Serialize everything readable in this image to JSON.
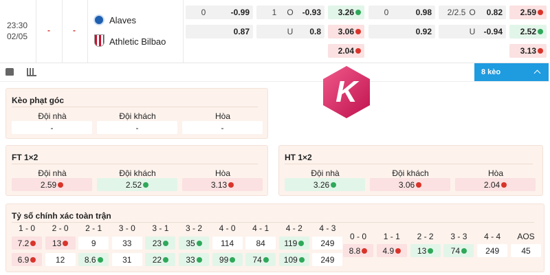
{
  "match": {
    "time": "23:30",
    "date": "02/05",
    "score_home": "-",
    "score_away": "-",
    "home": "Alaves",
    "away": "Athletic Bilbao"
  },
  "odds": {
    "rows": [
      [
        {
          "handicap": "0",
          "odds": "-0.99"
        },
        {
          "handicap": "1",
          "side": "O",
          "odds": "-0.93"
        },
        {
          "odds": "3.26",
          "trend": "up"
        },
        {
          "handicap": "0",
          "odds": "0.98"
        },
        {
          "handicap": "2/2.5",
          "side": "O",
          "odds": "0.82"
        },
        {
          "odds": "2.59",
          "trend": "down"
        }
      ],
      [
        {
          "odds": "0.87"
        },
        {
          "side": "U",
          "odds": "0.8"
        },
        {
          "odds": "3.06",
          "trend": "down"
        },
        {
          "odds": "0.92"
        },
        {
          "side": "U",
          "odds": "-0.94"
        },
        {
          "odds": "2.52",
          "trend": "up"
        }
      ],
      [
        null,
        null,
        {
          "odds": "2.04",
          "trend": "down"
        },
        null,
        null,
        {
          "odds": "3.13",
          "trend": "down"
        }
      ]
    ]
  },
  "toolbar": {
    "button": "8 kèo"
  },
  "logo": "K",
  "corner": {
    "title": "Kèo phạt góc",
    "headers": [
      "Đội nhà",
      "Đội khách",
      "Hòa"
    ],
    "values": [
      {
        "odds": "-"
      },
      {
        "odds": "-"
      },
      {
        "odds": "-"
      }
    ]
  },
  "ft": {
    "title": "FT 1×2",
    "headers": [
      "Đội nhà",
      "Đội khách",
      "Hòa"
    ],
    "values": [
      {
        "odds": "2.59",
        "trend": "down"
      },
      {
        "odds": "2.52",
        "trend": "up"
      },
      {
        "odds": "3.13",
        "trend": "down"
      }
    ]
  },
  "ht": {
    "title": "HT 1×2",
    "headers": [
      "Đội nhà",
      "Đội khách",
      "Hòa"
    ],
    "values": [
      {
        "odds": "3.26",
        "trend": "up"
      },
      {
        "odds": "3.06",
        "trend": "down"
      },
      {
        "odds": "2.04",
        "trend": "down"
      }
    ]
  },
  "correct_score": {
    "title": "Tỷ số chính xác toàn trận",
    "labels": [
      "1 - 0",
      "2 - 0",
      "2 - 1",
      "3 - 0",
      "3 - 1",
      "3 - 2",
      "4 - 0",
      "4 - 1",
      "4 - 2",
      "4 - 3"
    ],
    "rows": [
      [
        {
          "odds": "7.2",
          "trend": "down"
        },
        {
          "odds": "13",
          "trend": "down"
        },
        {
          "odds": "9"
        },
        {
          "odds": "33"
        },
        {
          "odds": "23",
          "trend": "up"
        },
        {
          "odds": "35",
          "trend": "up"
        },
        {
          "odds": "114"
        },
        {
          "odds": "84"
        },
        {
          "odds": "119",
          "trend": "up"
        },
        {
          "odds": "249"
        }
      ],
      [
        {
          "odds": "6.9",
          "trend": "down"
        },
        {
          "odds": "12"
        },
        {
          "odds": "8.6",
          "trend": "up"
        },
        {
          "odds": "31"
        },
        {
          "odds": "22",
          "trend": "up"
        },
        {
          "odds": "33",
          "trend": "up"
        },
        {
          "odds": "99",
          "trend": "up"
        },
        {
          "odds": "74",
          "trend": "up"
        },
        {
          "odds": "109",
          "trend": "up"
        },
        {
          "odds": "249"
        }
      ]
    ],
    "draws": {
      "labels": [
        "0 - 0",
        "1 - 1",
        "2 - 2",
        "3 - 3",
        "4 - 4",
        "AOS"
      ],
      "values": [
        {
          "odds": "8.8",
          "trend": "down"
        },
        {
          "odds": "4.9",
          "trend": "down"
        },
        {
          "odds": "13",
          "trend": "up"
        },
        {
          "odds": "74",
          "trend": "up"
        },
        {
          "odds": "249"
        },
        {
          "odds": "45"
        }
      ]
    }
  }
}
